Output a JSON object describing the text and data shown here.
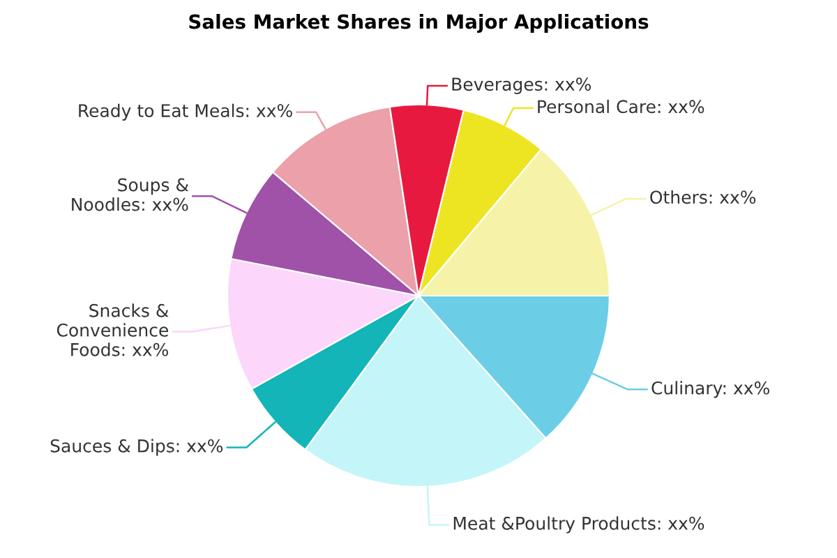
{
  "chart_data": {
    "type": "pie",
    "title": "Sales Market Shares in Major Applications",
    "categories": [
      "Culinary",
      "Meat &Poultry Products",
      "Sauces & Dips",
      "Snacks &\nConvenience\nFoods",
      "Soups &\nNoodles",
      "Ready to Eat Meals",
      "Beverages",
      "Personal Care",
      "Others"
    ],
    "values": [
      13.4,
      21.7,
      6.8,
      11.2,
      8.1,
      11.4,
      6.2,
      7.3,
      13.9
    ],
    "colors": [
      "#6ccde6",
      "#c4f5f8",
      "#13b5b8",
      "#fcd6fb",
      "#a052a8",
      "#eca0aa",
      "#e8193f",
      "#ede521",
      "#f6f3a8"
    ],
    "value_labels": [
      "xx%",
      "xx%",
      "xx%",
      "xx%",
      "xx%",
      "xx%",
      "xx%",
      "xx%",
      "xx%"
    ],
    "legend": false
  }
}
